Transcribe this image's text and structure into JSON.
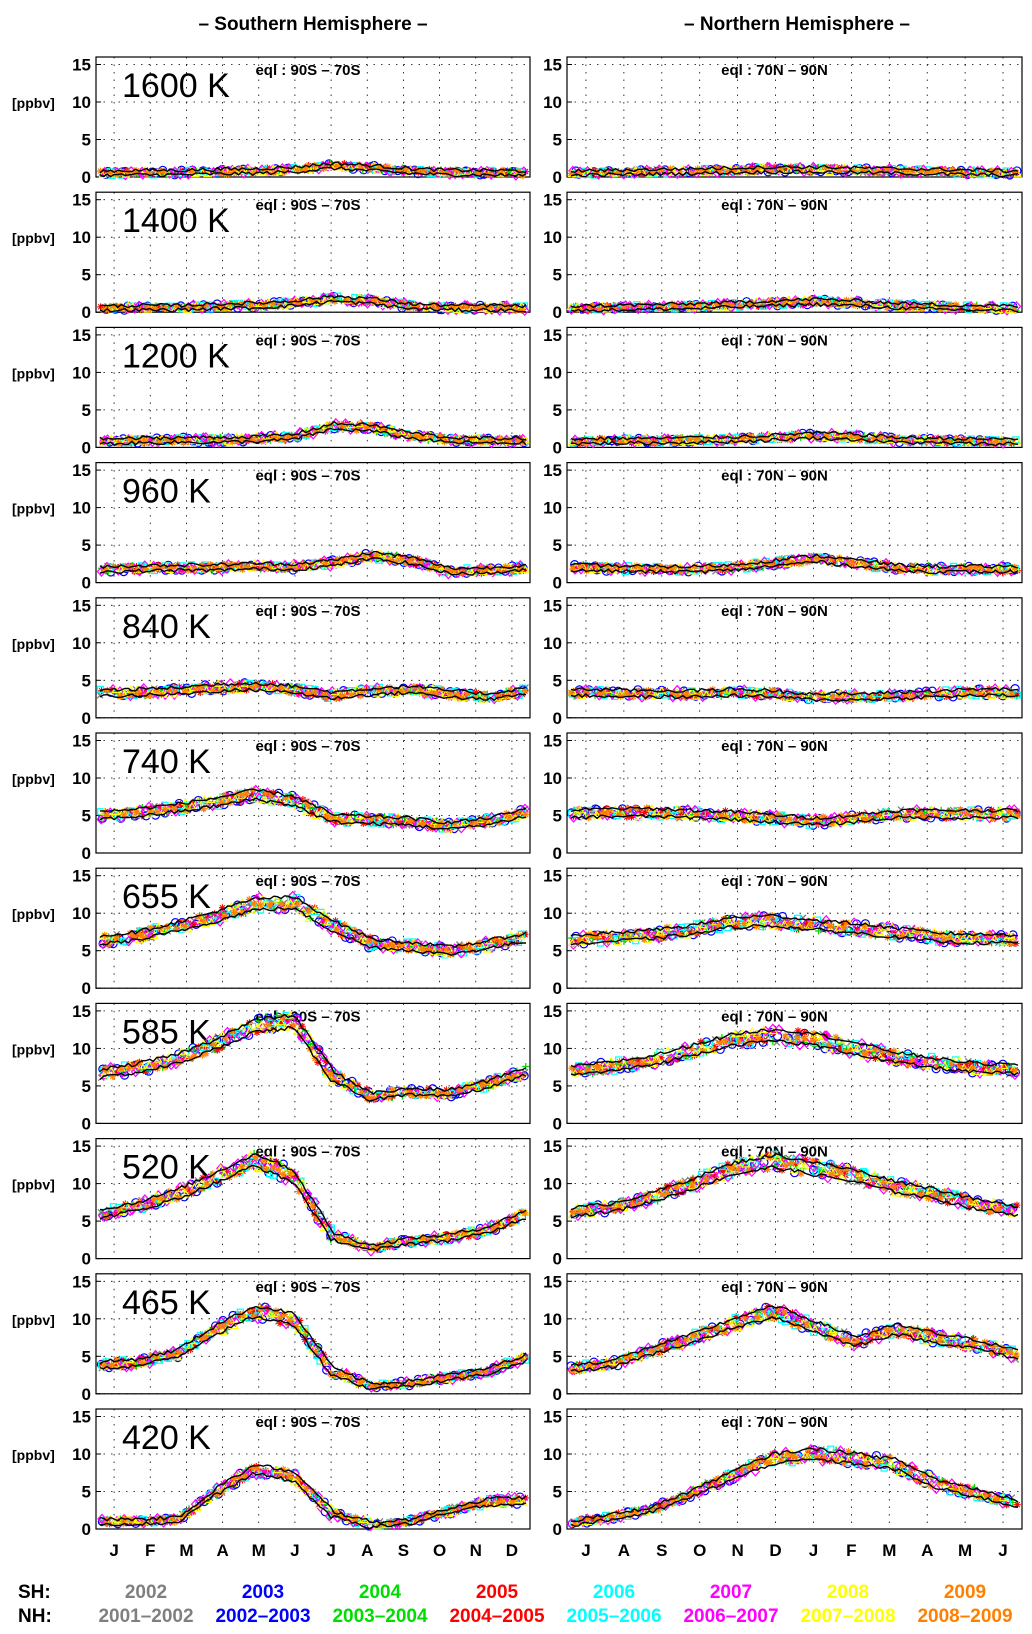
{
  "headers": {
    "left": "– Southern Hemisphere –",
    "right": "– Northern Hemisphere –"
  },
  "unit_label": "[ppbv]",
  "y_ticks": [
    "0",
    "5",
    "10",
    "15"
  ],
  "eql_labels": {
    "south": "eql : 90S – 70S",
    "north": "eql : 70N – 90N"
  },
  "months": {
    "south": [
      "J",
      "F",
      "M",
      "A",
      "M",
      "J",
      "J",
      "A",
      "S",
      "O",
      "N",
      "D"
    ],
    "north": [
      "J",
      "A",
      "S",
      "O",
      "N",
      "D",
      "J",
      "F",
      "M",
      "A",
      "M",
      "J"
    ]
  },
  "legend": {
    "sh_label": "SH:",
    "nh_label": "NH:",
    "entries": [
      {
        "sh": "2002",
        "nh": "2001–2002",
        "color": "#808080"
      },
      {
        "sh": "2003",
        "nh": "2002–2003",
        "color": "#0000ff"
      },
      {
        "sh": "2004",
        "nh": "2003–2004",
        "color": "#00dd00"
      },
      {
        "sh": "2005",
        "nh": "2004–2005",
        "color": "#ff0000"
      },
      {
        "sh": "2006",
        "nh": "2005–2006",
        "color": "#00ffff"
      },
      {
        "sh": "2007",
        "nh": "2006–2007",
        "color": "#ff00ff"
      },
      {
        "sh": "2008",
        "nh": "2007–2008",
        "color": "#ffff00"
      },
      {
        "sh": "2009",
        "nh": "2008–2009",
        "color": "#ff8000"
      }
    ]
  },
  "chart_data": {
    "type": "scatter",
    "ylabel": "[ppbv]",
    "ylim": [
      0,
      16
    ],
    "grid": true,
    "levels": [
      "1600 K",
      "1400 K",
      "1200 K",
      "960 K",
      "840 K",
      "740 K",
      "655 K",
      "585 K",
      "520 K",
      "465 K",
      "420 K"
    ],
    "months_south": [
      "J",
      "F",
      "M",
      "A",
      "M",
      "J",
      "J",
      "A",
      "S",
      "O",
      "N",
      "D"
    ],
    "months_north": [
      "J",
      "A",
      "S",
      "O",
      "N",
      "D",
      "J",
      "F",
      "M",
      "A",
      "M",
      "J"
    ],
    "approx_mean_profiles": {
      "south": [
        [
          0.5,
          0.6,
          0.6,
          0.7,
          0.8,
          1.0,
          1.5,
          1.2,
          0.8,
          0.6,
          0.6,
          0.5
        ],
        [
          0.5,
          0.6,
          0.6,
          0.8,
          0.9,
          1.2,
          1.8,
          1.5,
          0.8,
          0.6,
          0.6,
          0.5
        ],
        [
          0.8,
          0.9,
          1.0,
          1.0,
          1.1,
          1.4,
          2.8,
          2.6,
          1.6,
          1.0,
          0.9,
          0.9
        ],
        [
          1.8,
          1.9,
          2.0,
          2.0,
          2.2,
          2.1,
          2.6,
          3.6,
          3.0,
          1.6,
          1.6,
          2.0
        ],
        [
          3.3,
          3.4,
          3.6,
          4.0,
          4.2,
          3.8,
          3.0,
          3.5,
          3.8,
          3.2,
          2.8,
          3.6
        ],
        [
          5.0,
          5.4,
          6.0,
          6.8,
          7.8,
          7.0,
          4.6,
          4.4,
          4.2,
          3.6,
          4.2,
          5.4
        ],
        [
          6.4,
          7.0,
          8.2,
          9.6,
          11.2,
          11.4,
          8.4,
          6.0,
          5.6,
          5.0,
          5.8,
          6.8
        ],
        [
          6.6,
          7.4,
          8.6,
          10.6,
          13.0,
          13.6,
          6.4,
          3.6,
          4.2,
          4.0,
          5.2,
          7.0
        ],
        [
          6.0,
          7.0,
          8.6,
          10.8,
          13.2,
          11.0,
          3.0,
          1.4,
          2.4,
          2.8,
          3.8,
          6.0
        ],
        [
          3.8,
          4.2,
          5.4,
          8.6,
          11.0,
          10.0,
          3.0,
          1.0,
          1.4,
          2.2,
          3.0,
          4.8
        ],
        [
          1.0,
          1.0,
          1.2,
          5.0,
          8.0,
          7.0,
          2.0,
          0.6,
          1.0,
          2.4,
          3.6,
          3.8
        ]
      ],
      "north": [
        [
          0.5,
          0.6,
          0.7,
          0.8,
          0.9,
          1.0,
          1.0,
          0.9,
          0.8,
          0.7,
          0.6,
          0.5
        ],
        [
          0.5,
          0.6,
          0.7,
          0.8,
          1.0,
          1.2,
          1.4,
          1.2,
          0.9,
          0.7,
          0.6,
          0.5
        ],
        [
          0.8,
          0.9,
          0.9,
          1.0,
          1.1,
          1.3,
          1.6,
          1.4,
          1.0,
          0.9,
          0.8,
          0.8
        ],
        [
          2.0,
          1.9,
          1.8,
          1.8,
          2.0,
          2.6,
          3.2,
          2.6,
          2.0,
          1.8,
          1.8,
          1.8
        ],
        [
          3.4,
          3.3,
          3.2,
          3.2,
          3.4,
          3.2,
          2.8,
          2.8,
          3.0,
          3.2,
          3.4,
          3.4
        ],
        [
          5.2,
          5.4,
          5.4,
          5.2,
          5.0,
          4.6,
          4.2,
          4.6,
          5.2,
          5.2,
          5.2,
          5.2
        ],
        [
          6.4,
          6.8,
          7.2,
          7.8,
          8.8,
          9.0,
          8.4,
          8.0,
          7.4,
          6.8,
          6.6,
          6.6
        ],
        [
          7.0,
          7.6,
          8.4,
          9.8,
          11.2,
          11.8,
          11.2,
          10.0,
          8.8,
          8.0,
          7.4,
          7.2
        ],
        [
          6.2,
          6.8,
          8.2,
          10.0,
          12.0,
          13.0,
          12.0,
          11.0,
          9.6,
          8.6,
          7.2,
          6.4
        ],
        [
          3.4,
          4.0,
          5.8,
          7.4,
          9.4,
          11.0,
          9.0,
          7.0,
          8.6,
          7.4,
          6.6,
          5.2
        ],
        [
          0.8,
          1.6,
          2.6,
          4.8,
          7.2,
          9.4,
          10.0,
          9.4,
          8.6,
          6.0,
          4.8,
          3.4
        ]
      ]
    }
  }
}
